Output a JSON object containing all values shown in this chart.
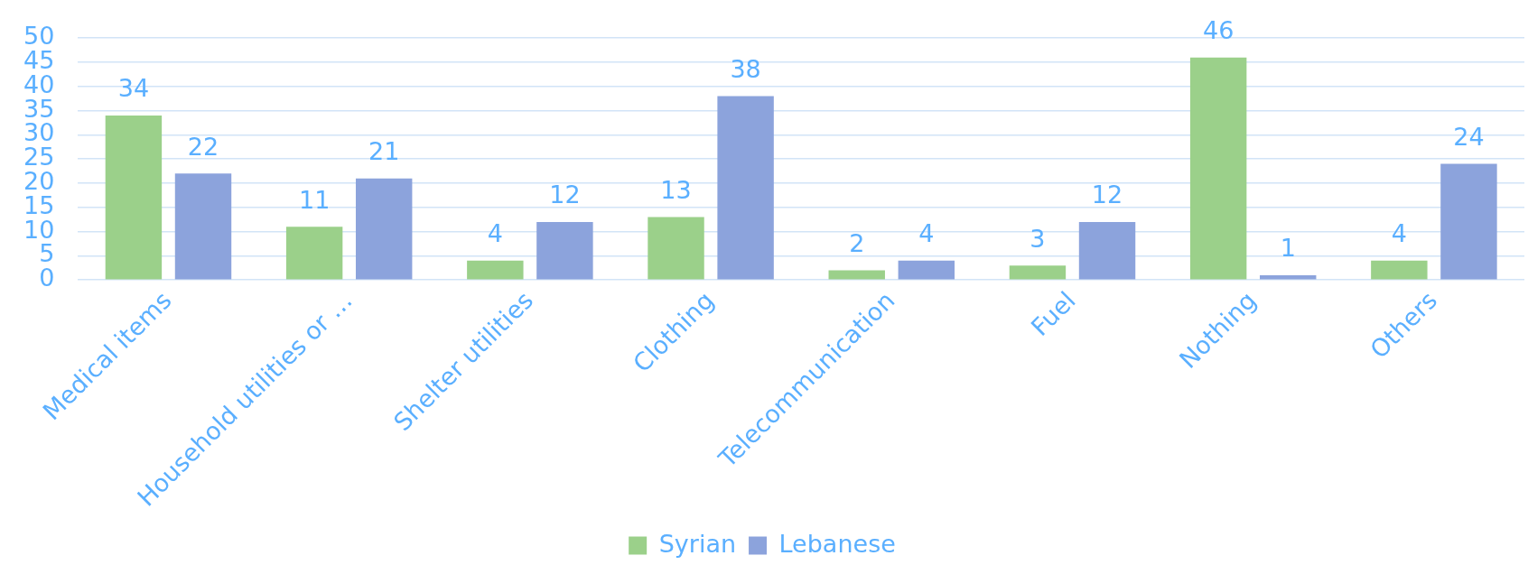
{
  "chart_data": {
    "type": "bar",
    "categories": [
      "Medical items",
      "Household utilities or …",
      "Shelter utilities",
      "Clothing",
      "Telecommunication",
      "Fuel",
      "Nothing",
      "Others"
    ],
    "series": [
      {
        "name": "Syrian",
        "color": "#9bd08a",
        "values": [
          34,
          11,
          4,
          13,
          2,
          3,
          46,
          4
        ]
      },
      {
        "name": "Lebanese",
        "color": "#8ca3dc",
        "values": [
          22,
          21,
          12,
          38,
          4,
          12,
          1,
          24
        ]
      }
    ],
    "ylim": [
      0,
      50
    ],
    "yticks": [
      0,
      5,
      10,
      15,
      20,
      25,
      30,
      35,
      40,
      45,
      50
    ],
    "grid": "y",
    "legend": "bottom",
    "data_labels": true
  }
}
